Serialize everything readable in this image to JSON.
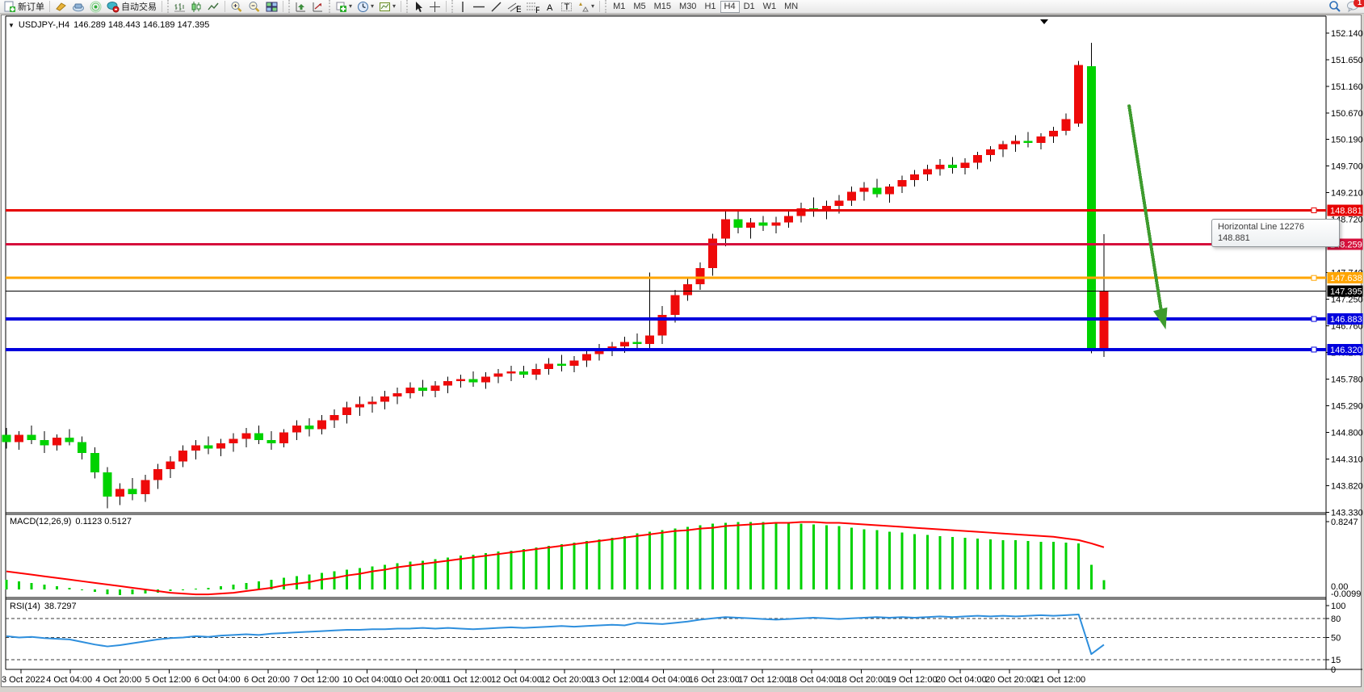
{
  "window": {
    "symbol_period": "USDJPY-,H4",
    "ohlc": "146.289 148.443 146.189 147.395",
    "alerts_badge": "1",
    "dropdown_glyph": "▼"
  },
  "toolbar": {
    "new_order_label": "新订单",
    "auto_trading_label": "自动交易",
    "active_timeframe": "H4",
    "timeframes": [
      "M1",
      "M5",
      "M15",
      "M30",
      "H1",
      "H4",
      "D1",
      "W1",
      "MN"
    ],
    "icon_names": [
      "new-order-icon",
      "eraser-icon",
      "cloud-icon",
      "signal-icon",
      "autotrade-icon",
      "bar-chart-icon",
      "candle-chart-icon",
      "line-chart-icon",
      "zoom-in-icon",
      "zoom-out-icon",
      "tile-windows-icon",
      "arrange-up-icon",
      "arrange-track-icon",
      "add-indicator-icon",
      "period-clock-icon",
      "template-icon",
      "cursor-icon",
      "crosshair-icon",
      "vertical-line-icon",
      "horizontal-line-icon",
      "trendline-icon",
      "channel-icon",
      "fibonacci-icon",
      "text-icon",
      "label-icon",
      "shapes-icon",
      "search-icon",
      "chat-icon"
    ]
  },
  "indicators": {
    "macd": {
      "name": "MACD(12,26,9)",
      "values": "0.1123 0.5127"
    },
    "rsi": {
      "name": "RSI(14)",
      "value": "38.7297"
    }
  },
  "tooltip": {
    "line1": "Horizontal Line 12276",
    "line2": "148.881"
  },
  "price_axis": {
    "ticks": [
      "152.140",
      "151.650",
      "151.160",
      "150.670",
      "150.190",
      "149.700",
      "149.210",
      "148.720",
      "148.230",
      "147.740",
      "147.250",
      "146.760",
      "146.270",
      "145.780",
      "145.290",
      "144.800",
      "144.310",
      "143.820",
      "143.330"
    ],
    "badges": [
      {
        "label": "148.881",
        "value": 148.881,
        "bg": "#e60000"
      },
      {
        "label": "148.259",
        "value": 148.259,
        "bg": "#d6103c"
      },
      {
        "label": "147.638",
        "value": 147.638,
        "bg": "#ffa500"
      },
      {
        "label": "147.395",
        "value": 147.395,
        "bg": "#000000"
      },
      {
        "label": "146.883",
        "value": 146.883,
        "bg": "#0000dd"
      },
      {
        "label": "146.320",
        "value": 146.32,
        "bg": "#0000dd"
      }
    ]
  },
  "macd_axis": {
    "top": "0.8247",
    "zero": "0.00",
    "min": "-0.0099"
  },
  "rsi_axis": {
    "levels": [
      "100",
      "80",
      "50",
      "15",
      "0"
    ]
  },
  "time_axis": {
    "labels": [
      "3 Oct 2022",
      "4 Oct 04:00",
      "4 Oct 20:00",
      "5 Oct 12:00",
      "6 Oct 04:00",
      "6 Oct 20:00",
      "7 Oct 12:00",
      "10 Oct 04:00",
      "10 Oct 20:00",
      "11 Oct 12:00",
      "12 Oct 04:00",
      "12 Oct 20:00",
      "13 Oct 12:00",
      "14 Oct 04:00",
      "16 Oct 23:00",
      "17 Oct 12:00",
      "18 Oct 04:00",
      "18 Oct 20:00",
      "19 Oct 12:00",
      "20 Oct 04:00",
      "20 Oct 20:00",
      "21 Oct 12:00"
    ]
  },
  "colors": {
    "up": "#ee0a0a",
    "down": "#00d200",
    "wick": "#000000",
    "macd_hist": "#00d200",
    "macd_signal": "#ff0000",
    "rsi_line": "#2e8fdd",
    "arrow": "#3e9b2e"
  },
  "chart_data": [
    {
      "type": "candlestick",
      "title": "USDJPY- H4",
      "color_convention": "red = bullish, green = bearish (CN convention)",
      "ylim": [
        143.33,
        152.3
      ],
      "bid": 147.395,
      "x_labels": [
        "3 Oct 2022",
        "4 Oct 04:00",
        "4 Oct 20:00",
        "5 Oct 12:00",
        "6 Oct 04:00",
        "6 Oct 20:00",
        "7 Oct 12:00",
        "10 Oct 04:00",
        "10 Oct 20:00",
        "11 Oct 12:00",
        "12 Oct 04:00",
        "12 Oct 20:00",
        "13 Oct 12:00",
        "14 Oct 04:00",
        "16 Oct 23:00",
        "17 Oct 12:00",
        "18 Oct 04:00",
        "18 Oct 20:00",
        "19 Oct 12:00",
        "20 Oct 04:00",
        "20 Oct 20:00",
        "21 Oct 12:00"
      ],
      "ohlc": [
        [
          144.75,
          144.88,
          144.5,
          144.62
        ],
        [
          144.62,
          144.82,
          144.48,
          144.75
        ],
        [
          144.75,
          144.92,
          144.58,
          144.66
        ],
        [
          144.66,
          144.82,
          144.42,
          144.56
        ],
        [
          144.56,
          144.76,
          144.46,
          144.7
        ],
        [
          144.7,
          144.86,
          144.56,
          144.62
        ],
        [
          144.62,
          144.72,
          144.3,
          144.42
        ],
        [
          144.42,
          144.52,
          143.95,
          144.06
        ],
        [
          144.06,
          144.16,
          143.4,
          143.62
        ],
        [
          143.62,
          143.86,
          143.46,
          143.76
        ],
        [
          143.76,
          143.96,
          143.55,
          143.66
        ],
        [
          143.66,
          144.02,
          143.52,
          143.92
        ],
        [
          143.92,
          144.22,
          143.76,
          144.12
        ],
        [
          144.12,
          144.36,
          143.96,
          144.26
        ],
        [
          144.26,
          144.56,
          144.16,
          144.46
        ],
        [
          144.46,
          144.66,
          144.3,
          144.56
        ],
        [
          144.56,
          144.72,
          144.4,
          144.5
        ],
        [
          144.5,
          144.68,
          144.36,
          144.6
        ],
        [
          144.6,
          144.78,
          144.44,
          144.68
        ],
        [
          144.68,
          144.88,
          144.52,
          144.78
        ],
        [
          144.78,
          144.92,
          144.58,
          144.66
        ],
        [
          144.66,
          144.82,
          144.48,
          144.6
        ],
        [
          144.6,
          144.86,
          144.52,
          144.8
        ],
        [
          144.8,
          145.02,
          144.66,
          144.92
        ],
        [
          144.92,
          145.06,
          144.72,
          144.86
        ],
        [
          144.86,
          145.12,
          144.76,
          145.02
        ],
        [
          145.02,
          145.22,
          144.88,
          145.12
        ],
        [
          145.12,
          145.36,
          144.96,
          145.26
        ],
        [
          145.26,
          145.46,
          145.1,
          145.32
        ],
        [
          145.32,
          145.46,
          145.16,
          145.36
        ],
        [
          145.36,
          145.56,
          145.22,
          145.46
        ],
        [
          145.46,
          145.62,
          145.32,
          145.52
        ],
        [
          145.52,
          145.72,
          145.42,
          145.62
        ],
        [
          145.62,
          145.76,
          145.46,
          145.56
        ],
        [
          145.56,
          145.74,
          145.44,
          145.66
        ],
        [
          145.66,
          145.82,
          145.52,
          145.74
        ],
        [
          145.74,
          145.86,
          145.62,
          145.78
        ],
        [
          145.78,
          145.92,
          145.64,
          145.72
        ],
        [
          145.72,
          145.9,
          145.6,
          145.82
        ],
        [
          145.82,
          145.96,
          145.7,
          145.88
        ],
        [
          145.88,
          146.02,
          145.74,
          145.92
        ],
        [
          145.92,
          146.02,
          145.8,
          145.86
        ],
        [
          145.86,
          146.06,
          145.76,
          145.96
        ],
        [
          145.96,
          146.16,
          145.86,
          146.06
        ],
        [
          146.06,
          146.22,
          145.92,
          146.02
        ],
        [
          146.02,
          146.2,
          145.9,
          146.12
        ],
        [
          146.12,
          146.32,
          146.0,
          146.24
        ],
        [
          146.24,
          146.42,
          146.12,
          146.32
        ],
        [
          146.32,
          146.46,
          146.2,
          146.38
        ],
        [
          146.38,
          146.56,
          146.26,
          146.46
        ],
        [
          146.46,
          146.62,
          146.32,
          146.42
        ],
        [
          146.42,
          147.74,
          146.3,
          146.58
        ],
        [
          146.58,
          147.12,
          146.42,
          146.96
        ],
        [
          146.96,
          147.42,
          146.82,
          147.32
        ],
        [
          147.32,
          147.62,
          147.22,
          147.52
        ],
        [
          147.52,
          147.92,
          147.42,
          147.82
        ],
        [
          147.82,
          148.45,
          147.68,
          148.36
        ],
        [
          148.36,
          148.86,
          148.22,
          148.72
        ],
        [
          148.72,
          148.86,
          148.46,
          148.56
        ],
        [
          148.56,
          148.74,
          148.36,
          148.66
        ],
        [
          148.66,
          148.78,
          148.5,
          148.6
        ],
        [
          148.6,
          148.76,
          148.46,
          148.66
        ],
        [
          148.66,
          148.86,
          148.56,
          148.78
        ],
        [
          148.78,
          149.02,
          148.66,
          148.92
        ],
        [
          148.92,
          149.12,
          148.76,
          148.86
        ],
        [
          148.86,
          149.06,
          148.72,
          148.96
        ],
        [
          148.96,
          149.16,
          148.82,
          149.06
        ],
        [
          149.06,
          149.32,
          148.96,
          149.22
        ],
        [
          149.22,
          149.4,
          149.06,
          149.3
        ],
        [
          149.3,
          149.46,
          149.12,
          149.18
        ],
        [
          149.18,
          149.36,
          149.02,
          149.32
        ],
        [
          149.32,
          149.52,
          149.2,
          149.44
        ],
        [
          149.44,
          149.62,
          149.32,
          149.54
        ],
        [
          149.54,
          149.72,
          149.42,
          149.64
        ],
        [
          149.64,
          149.82,
          149.52,
          149.72
        ],
        [
          149.72,
          149.86,
          149.56,
          149.66
        ],
        [
          149.66,
          149.84,
          149.54,
          149.76
        ],
        [
          149.76,
          149.96,
          149.64,
          149.9
        ],
        [
          149.9,
          150.06,
          149.78,
          150.0
        ],
        [
          150.0,
          150.16,
          149.86,
          150.1
        ],
        [
          150.1,
          150.26,
          149.96,
          150.16
        ],
        [
          150.16,
          150.32,
          150.04,
          150.12
        ],
        [
          150.12,
          150.3,
          150.0,
          150.24
        ],
        [
          150.24,
          150.42,
          150.12,
          150.34
        ],
        [
          150.34,
          150.66,
          150.26,
          150.56
        ],
        [
          150.48,
          151.63,
          150.42,
          151.55
        ],
        [
          151.53,
          151.96,
          146.25,
          146.32
        ],
        [
          146.289,
          148.443,
          146.189,
          147.395
        ]
      ],
      "horizontal_lines": [
        {
          "price": 148.881,
          "color": "#e60000",
          "w": 3,
          "handle": true
        },
        {
          "price": 148.259,
          "color": "#d6103c",
          "w": 3,
          "handle": true
        },
        {
          "price": 147.638,
          "color": "#ffa500",
          "w": 3,
          "handle": true
        },
        {
          "price": 147.395,
          "color": "#000000",
          "w": 1,
          "handle": false
        },
        {
          "price": 146.883,
          "color": "#0000dd",
          "w": 4,
          "handle": true
        },
        {
          "price": 146.32,
          "color": "#0000dd",
          "w": 4,
          "handle": true
        }
      ],
      "arrow_annotation": {
        "start_candle": 89,
        "start_price": 150.8,
        "end_candle": 91.6,
        "end_price": 146.95,
        "tip_candle": 91.9,
        "tip_price": 146.69
      }
    },
    {
      "type": "bar",
      "title": "MACD(12,26,9)",
      "current_main": 0.1123,
      "current_signal": 0.5127,
      "ymax": 0.8247,
      "ymin": -0.0099,
      "histogram": [
        0.12,
        0.1,
        0.08,
        0.06,
        0.04,
        0.02,
        -0.01,
        -0.03,
        -0.06,
        -0.07,
        -0.06,
        -0.05,
        -0.04,
        -0.02,
        -0.01,
        0.01,
        0.02,
        0.04,
        0.06,
        0.08,
        0.1,
        0.12,
        0.14,
        0.16,
        0.18,
        0.2,
        0.22,
        0.24,
        0.26,
        0.28,
        0.3,
        0.32,
        0.34,
        0.35,
        0.37,
        0.39,
        0.41,
        0.42,
        0.44,
        0.46,
        0.47,
        0.49,
        0.51,
        0.53,
        0.55,
        0.57,
        0.59,
        0.61,
        0.63,
        0.65,
        0.68,
        0.7,
        0.72,
        0.74,
        0.76,
        0.78,
        0.8,
        0.81,
        0.82,
        0.82,
        0.82,
        0.82,
        0.81,
        0.8,
        0.79,
        0.78,
        0.77,
        0.75,
        0.73,
        0.72,
        0.7,
        0.69,
        0.67,
        0.66,
        0.65,
        0.64,
        0.63,
        0.62,
        0.61,
        0.6,
        0.6,
        0.59,
        0.58,
        0.58,
        0.57,
        0.56,
        0.3,
        0.1123
      ],
      "signal": [
        0.22,
        0.2,
        0.18,
        0.16,
        0.14,
        0.12,
        0.1,
        0.08,
        0.06,
        0.04,
        0.02,
        0.0,
        -0.02,
        -0.04,
        -0.05,
        -0.06,
        -0.06,
        -0.05,
        -0.04,
        -0.02,
        0.0,
        0.02,
        0.05,
        0.07,
        0.09,
        0.12,
        0.14,
        0.17,
        0.19,
        0.22,
        0.24,
        0.27,
        0.29,
        0.31,
        0.33,
        0.35,
        0.37,
        0.39,
        0.41,
        0.43,
        0.45,
        0.47,
        0.49,
        0.51,
        0.53,
        0.55,
        0.57,
        0.59,
        0.61,
        0.63,
        0.65,
        0.67,
        0.69,
        0.71,
        0.72,
        0.74,
        0.75,
        0.77,
        0.78,
        0.79,
        0.8,
        0.81,
        0.81,
        0.82,
        0.82,
        0.81,
        0.81,
        0.8,
        0.79,
        0.78,
        0.77,
        0.76,
        0.75,
        0.74,
        0.73,
        0.72,
        0.71,
        0.7,
        0.69,
        0.68,
        0.67,
        0.66,
        0.65,
        0.64,
        0.62,
        0.6,
        0.56,
        0.5127
      ]
    },
    {
      "type": "line",
      "title": "RSI(14)",
      "current": 38.7297,
      "levels": [
        80,
        50,
        15
      ],
      "ylim": [
        0,
        100
      ],
      "values": [
        52,
        50,
        51,
        49,
        48,
        47,
        43,
        39,
        36,
        38,
        41,
        44,
        47,
        49,
        50,
        52,
        51,
        53,
        54,
        55,
        54,
        56,
        57,
        58,
        59,
        60,
        61,
        62,
        62,
        63,
        63,
        64,
        64,
        65,
        64,
        65,
        64,
        63,
        64,
        65,
        66,
        65,
        66,
        67,
        68,
        67,
        68,
        69,
        70,
        69,
        73,
        72,
        71,
        73,
        75,
        78,
        80,
        82,
        81,
        80,
        79,
        78,
        79,
        80,
        81,
        80,
        79,
        80,
        81,
        82,
        81,
        82,
        81,
        82,
        83,
        82,
        83,
        84,
        83,
        84,
        83,
        84,
        85,
        84,
        85,
        86,
        24,
        38.7297
      ]
    }
  ]
}
